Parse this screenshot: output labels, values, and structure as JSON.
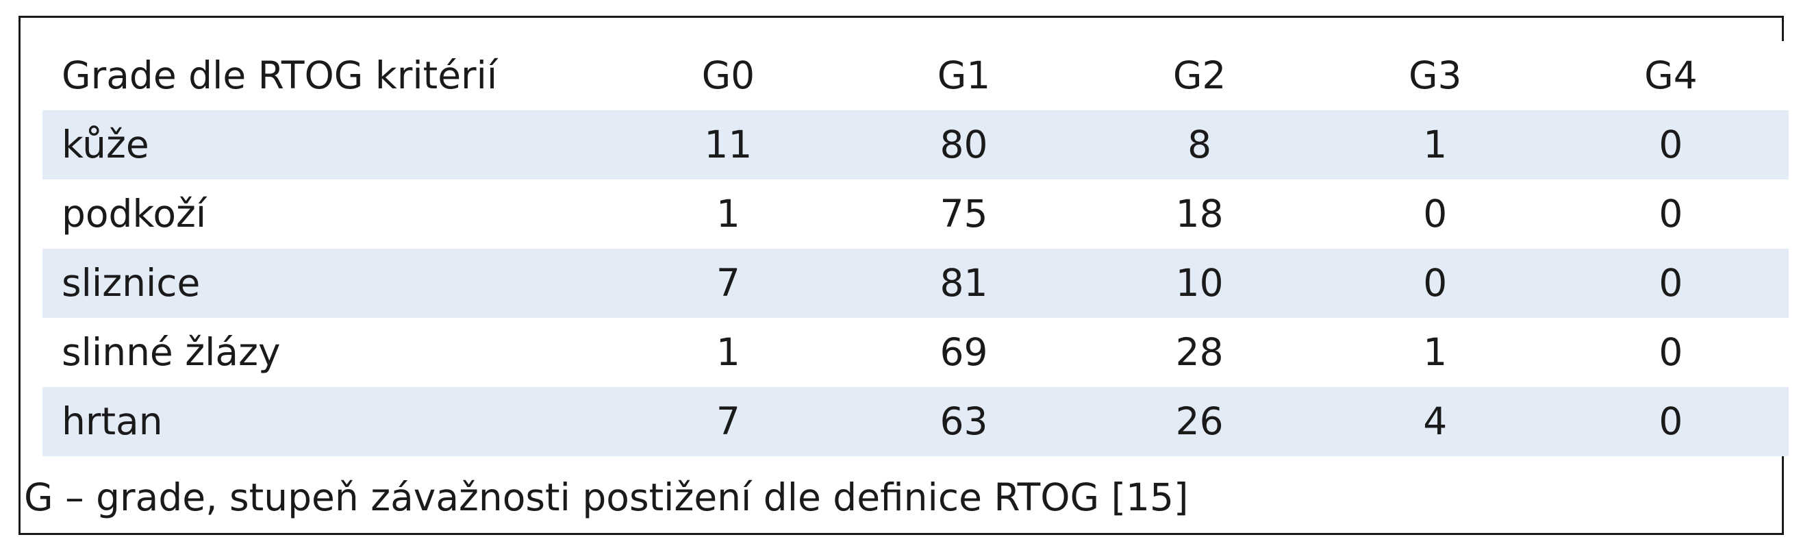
{
  "table": {
    "columns": [
      "Grade dle RTOG kritérií",
      "G0",
      "G1",
      "G2",
      "G3",
      "G4"
    ],
    "rows": [
      {
        "label": "kůže",
        "values": [
          "11",
          "80",
          "8",
          "1",
          "0"
        ]
      },
      {
        "label": "podkoží",
        "values": [
          "1",
          "75",
          "18",
          "0",
          "0"
        ]
      },
      {
        "label": "sliznice",
        "values": [
          "7",
          "81",
          "10",
          "0",
          "0"
        ]
      },
      {
        "label": "slinné žlázy",
        "values": [
          "1",
          "69",
          "28",
          "1",
          "0"
        ]
      },
      {
        "label": "hrtan",
        "values": [
          "7",
          "63",
          "26",
          "4",
          "0"
        ]
      }
    ],
    "footnote": "G – grade, stupeň závažnosti postižení dle definice RTOG [15]",
    "colors": {
      "shaded_row": "#e3ebf6",
      "border": "#1a1a1a"
    }
  }
}
